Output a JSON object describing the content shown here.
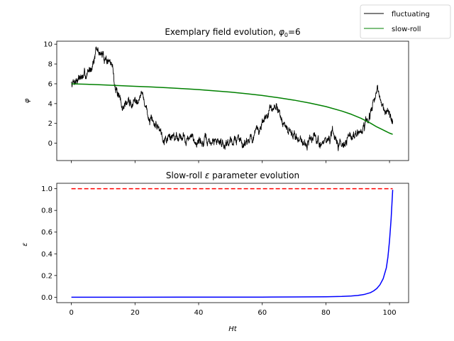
{
  "legend": {
    "placement": "top-right",
    "entries": [
      {
        "label": "fluctuating",
        "color": "#000000"
      },
      {
        "label": "slow-roll",
        "color": "#008000"
      }
    ]
  },
  "chart_data": [
    {
      "type": "line",
      "title_text": "Exemplary field evolution, ",
      "title_math": "φ",
      "title_sub": "0",
      "title_tail": "=6",
      "xlabel": "",
      "ylabel": "φ",
      "xlim": [
        -4.6,
        106
      ],
      "ylim": [
        -1.75,
        10.3
      ],
      "yticks": [
        0,
        2,
        4,
        6,
        8,
        10
      ],
      "xticks": [
        0,
        20,
        40,
        60,
        80,
        100
      ],
      "xtick_labels_shown": false,
      "grid": false,
      "series": [
        {
          "name": "fluctuating",
          "color": "#000000",
          "seed": 7,
          "x": [
            0,
            1,
            2.5,
            4,
            5.5,
            7,
            8,
            9,
            10,
            11,
            12,
            13,
            14,
            15,
            16,
            17,
            18,
            19,
            20,
            21,
            22,
            23,
            24,
            25,
            26,
            27,
            28,
            29,
            30,
            32,
            34,
            36,
            38,
            40,
            42,
            44,
            46,
            48,
            50,
            52,
            54,
            56,
            58,
            60,
            62,
            63,
            64,
            65,
            66,
            67,
            68,
            70,
            72,
            74,
            76,
            78,
            80,
            82,
            84,
            86,
            88,
            89,
            90,
            91,
            92,
            93,
            94,
            95,
            96,
            97,
            98,
            99,
            100,
            101
          ],
          "y": [
            6.1,
            6.4,
            6.7,
            6.6,
            7.2,
            8.5,
            9.3,
            9.1,
            8.7,
            8.6,
            8.2,
            7.6,
            5.5,
            4.2,
            3.6,
            4.0,
            4.2,
            3.9,
            4.4,
            4.8,
            5.0,
            4.2,
            2.9,
            2.0,
            1.8,
            1.9,
            1.4,
            0.8,
            0.6,
            0.7,
            0.9,
            0.5,
            0.4,
            0.2,
            0.1,
            0.0,
            0.3,
            0.1,
            0.2,
            0.4,
            0.2,
            0.5,
            0.8,
            2.0,
            3.0,
            3.3,
            3.5,
            3.6,
            2.8,
            1.5,
            1.2,
            0.8,
            0.4,
            0.1,
            0.6,
            0.0,
            0.2,
            0.7,
            0.1,
            0.3,
            0.6,
            0.8,
            0.9,
            1.0,
            1.4,
            2.0,
            2.9,
            4.2,
            5.0,
            4.7,
            3.8,
            3.2,
            2.8,
            2.1
          ],
          "noise_amplitude": 0.55
        },
        {
          "name": "slow-roll",
          "color": "#008000",
          "model": "phi0 * sqrt(1 - t/T)-like",
          "x": [
            0,
            5,
            10,
            15,
            20,
            25,
            30,
            35,
            40,
            45,
            50,
            55,
            60,
            65,
            70,
            75,
            80,
            85,
            88,
            91,
            94,
            96,
            97.5,
            99,
            100,
            101
          ],
          "y": [
            6.0,
            5.95,
            5.89,
            5.82,
            5.75,
            5.68,
            5.6,
            5.51,
            5.41,
            5.29,
            5.16,
            5.0,
            4.82,
            4.6,
            4.35,
            4.05,
            3.7,
            3.25,
            2.92,
            2.52,
            2.03,
            1.65,
            1.42,
            1.18,
            1.02,
            0.9
          ]
        }
      ]
    },
    {
      "type": "line",
      "title_text": "Slow-roll ",
      "title_math": "ε",
      "title_tail": " parameter evolution",
      "xlabel": "Ht",
      "ylabel": "ε",
      "xlim": [
        -4.6,
        106
      ],
      "ylim": [
        -0.05,
        1.05
      ],
      "yticks": [
        0.0,
        0.2,
        0.4,
        0.6,
        0.8,
        1.0
      ],
      "ytick_labels": [
        "0.0",
        "0.2",
        "0.4",
        "0.6",
        "0.8",
        "1.0"
      ],
      "xticks": [
        0,
        20,
        40,
        60,
        80,
        100
      ],
      "xtick_labels": [
        "0",
        "20",
        "40",
        "60",
        "80",
        "100"
      ],
      "grid": false,
      "series": [
        {
          "style": "solid",
          "color": "#0000ff",
          "x": [
            0,
            20,
            40,
            60,
            70,
            80,
            85,
            88,
            90,
            92,
            94,
            95,
            96,
            97,
            98,
            99,
            99.5,
            100,
            100.5,
            101
          ],
          "y": [
            0.0,
            0.0,
            0.0005,
            0.001,
            0.002,
            0.004,
            0.007,
            0.011,
            0.016,
            0.025,
            0.042,
            0.058,
            0.08,
            0.115,
            0.17,
            0.27,
            0.37,
            0.52,
            0.72,
            0.99
          ]
        },
        {
          "style": "dashed",
          "color": "#ff0000",
          "x": [
            0,
            101
          ],
          "y": [
            1.0,
            1.0
          ]
        }
      ]
    }
  ]
}
